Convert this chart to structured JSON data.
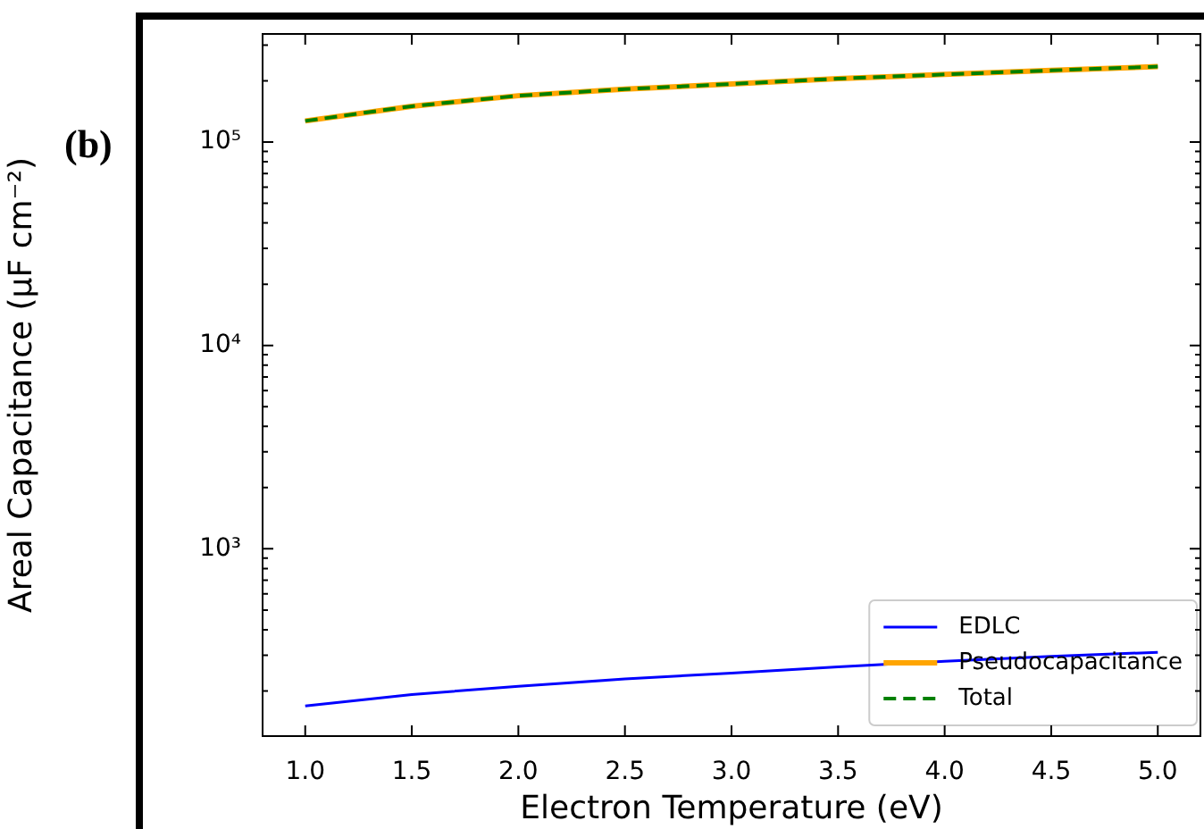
{
  "chart_data": {
    "type": "line",
    "xlabel": "Electron Temperature (eV)",
    "ylabel": "Areal Capacitance (μF cm⁻²)",
    "annotations": [
      "(b)"
    ],
    "x": [
      1.0,
      1.5,
      2.0,
      2.5,
      3.0,
      3.5,
      4.0,
      4.5,
      5.0
    ],
    "series": [
      {
        "name": "EDLC",
        "color": "#0000ff",
        "line_style": "solid",
        "values": [
          169,
          192,
          211,
          229,
          245,
          263,
          280,
          296,
          310
        ]
      },
      {
        "name": "Pseudocapacitance",
        "color": "#ffa500",
        "line_style": "solid",
        "values": [
          127000,
          150000,
          169000,
          182000,
          193000,
          205000,
          215000,
          225000,
          235000
        ]
      },
      {
        "name": "Total",
        "color": "#008000",
        "line_style": "dashed",
        "values": [
          127000,
          150000,
          169000,
          182000,
          193000,
          205000,
          215000,
          225000,
          235000
        ]
      }
    ],
    "log": "y",
    "xlim": [
      0.8,
      5.2
    ],
    "ylim": [
      120,
      340000
    ],
    "xticks": [
      {
        "value": 1,
        "label": "1.0"
      },
      {
        "value": 1.5,
        "label": "1.5"
      },
      {
        "value": 2,
        "label": "2.0"
      },
      {
        "value": 2.5,
        "label": "2.5"
      },
      {
        "value": 3,
        "label": "3.0"
      },
      {
        "value": 3.5,
        "label": "3.5"
      },
      {
        "value": 4,
        "label": "4.0"
      },
      {
        "value": 4.5,
        "label": "4.5"
      },
      {
        "value": 5,
        "label": "5.0"
      }
    ],
    "yticks": [
      {
        "value": 200,
        "label": null
      },
      {
        "value": 300,
        "label": null
      },
      {
        "value": 400,
        "label": null
      },
      {
        "value": 500,
        "label": null
      },
      {
        "value": 600,
        "label": null
      },
      {
        "value": 700,
        "label": null
      },
      {
        "value": 800,
        "label": null
      },
      {
        "value": 900,
        "label": null
      },
      {
        "value": 1000,
        "label": "10³"
      },
      {
        "value": 2000,
        "label": null
      },
      {
        "value": 3000,
        "label": null
      },
      {
        "value": 4000,
        "label": null
      },
      {
        "value": 5000,
        "label": null
      },
      {
        "value": 6000,
        "label": null
      },
      {
        "value": 7000,
        "label": null
      },
      {
        "value": 8000,
        "label": null
      },
      {
        "value": 9000,
        "label": null
      },
      {
        "value": 10000,
        "label": "10⁴"
      },
      {
        "value": 20000,
        "label": null
      },
      {
        "value": 30000,
        "label": null
      },
      {
        "value": 40000,
        "label": null
      },
      {
        "value": 50000,
        "label": null
      },
      {
        "value": 60000,
        "label": null
      },
      {
        "value": 70000,
        "label": null
      },
      {
        "value": 80000,
        "label": null
      },
      {
        "value": 90000,
        "label": null
      },
      {
        "value": 100000,
        "label": "10⁵"
      },
      {
        "value": 200000,
        "label": null
      },
      {
        "value": 300000,
        "label": null
      }
    ],
    "grid": false,
    "legend": "bottom right"
  }
}
